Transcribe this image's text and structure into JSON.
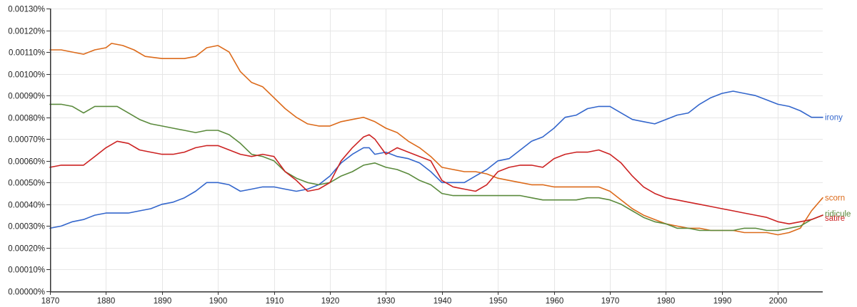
{
  "chart_data": {
    "type": "line",
    "title": "",
    "xlabel": "",
    "ylabel": "",
    "xlim": [
      1870,
      2008
    ],
    "ylim": [
      0,
      0.0013
    ],
    "grid": true,
    "x_ticks": [
      1870,
      1880,
      1890,
      1900,
      1910,
      1920,
      1930,
      1940,
      1950,
      1960,
      1970,
      1980,
      1990,
      2000
    ],
    "x_tick_labels": [
      "1870",
      "1880",
      "1890",
      "1900",
      "1910",
      "1920",
      "1930",
      "1940",
      "1950",
      "1960",
      "1970",
      "1980",
      "1990",
      "2000"
    ],
    "y_ticks": [
      0,
      0.0001,
      0.0002,
      0.0003,
      0.0004,
      0.0005,
      0.0006,
      0.0007,
      0.0008,
      0.0009,
      0.001,
      0.0011,
      0.0012,
      0.0013
    ],
    "y_tick_labels": [
      "0.00000%",
      "0.00010%",
      "0.00020%",
      "0.00030%",
      "0.00040%",
      "0.00050%",
      "0.00060%",
      "0.00070%",
      "0.00080%",
      "0.00090%",
      "0.00100%",
      "0.00110%",
      "0.00120%",
      "0.00130%"
    ],
    "legend": "inline-right",
    "series": [
      {
        "name": "irony",
        "color": "#3366cc",
        "points": [
          [
            1870,
            0.00029
          ],
          [
            1872,
            0.0003
          ],
          [
            1874,
            0.00032
          ],
          [
            1876,
            0.00033
          ],
          [
            1878,
            0.00035
          ],
          [
            1880,
            0.00036
          ],
          [
            1882,
            0.00036
          ],
          [
            1884,
            0.00036
          ],
          [
            1886,
            0.00037
          ],
          [
            1888,
            0.00038
          ],
          [
            1890,
            0.0004
          ],
          [
            1892,
            0.00041
          ],
          [
            1894,
            0.00043
          ],
          [
            1896,
            0.00046
          ],
          [
            1898,
            0.0005
          ],
          [
            1900,
            0.0005
          ],
          [
            1902,
            0.00049
          ],
          [
            1904,
            0.00046
          ],
          [
            1906,
            0.00047
          ],
          [
            1908,
            0.00048
          ],
          [
            1910,
            0.00048
          ],
          [
            1912,
            0.00047
          ],
          [
            1914,
            0.00046
          ],
          [
            1916,
            0.00047
          ],
          [
            1918,
            0.00049
          ],
          [
            1920,
            0.00053
          ],
          [
            1922,
            0.00059
          ],
          [
            1924,
            0.00063
          ],
          [
            1926,
            0.00066
          ],
          [
            1927,
            0.00066
          ],
          [
            1928,
            0.00063
          ],
          [
            1930,
            0.00064
          ],
          [
            1932,
            0.00062
          ],
          [
            1934,
            0.00061
          ],
          [
            1936,
            0.00059
          ],
          [
            1938,
            0.00055
          ],
          [
            1940,
            0.0005
          ],
          [
            1942,
            0.0005
          ],
          [
            1944,
            0.0005
          ],
          [
            1946,
            0.00053
          ],
          [
            1948,
            0.00056
          ],
          [
            1950,
            0.0006
          ],
          [
            1952,
            0.00061
          ],
          [
            1954,
            0.00065
          ],
          [
            1956,
            0.00069
          ],
          [
            1958,
            0.00071
          ],
          [
            1960,
            0.00075
          ],
          [
            1962,
            0.0008
          ],
          [
            1964,
            0.00081
          ],
          [
            1966,
            0.00084
          ],
          [
            1968,
            0.00085
          ],
          [
            1970,
            0.00085
          ],
          [
            1972,
            0.00082
          ],
          [
            1974,
            0.00079
          ],
          [
            1976,
            0.00078
          ],
          [
            1978,
            0.00077
          ],
          [
            1980,
            0.00079
          ],
          [
            1982,
            0.00081
          ],
          [
            1984,
            0.00082
          ],
          [
            1986,
            0.00086
          ],
          [
            1988,
            0.00089
          ],
          [
            1990,
            0.00091
          ],
          [
            1992,
            0.00092
          ],
          [
            1994,
            0.00091
          ],
          [
            1996,
            0.0009
          ],
          [
            1998,
            0.00088
          ],
          [
            2000,
            0.00086
          ],
          [
            2002,
            0.00085
          ],
          [
            2004,
            0.00083
          ],
          [
            2006,
            0.0008
          ],
          [
            2008,
            0.0008
          ]
        ]
      },
      {
        "name": "scorn",
        "color": "#dc6a1a",
        "points": [
          [
            1870,
            0.00111
          ],
          [
            1872,
            0.00111
          ],
          [
            1874,
            0.0011
          ],
          [
            1876,
            0.00109
          ],
          [
            1878,
            0.00111
          ],
          [
            1880,
            0.00112
          ],
          [
            1881,
            0.00114
          ],
          [
            1883,
            0.00113
          ],
          [
            1885,
            0.00111
          ],
          [
            1887,
            0.00108
          ],
          [
            1890,
            0.00107
          ],
          [
            1892,
            0.00107
          ],
          [
            1894,
            0.00107
          ],
          [
            1896,
            0.00108
          ],
          [
            1898,
            0.00112
          ],
          [
            1900,
            0.00113
          ],
          [
            1902,
            0.0011
          ],
          [
            1904,
            0.00101
          ],
          [
            1906,
            0.00096
          ],
          [
            1908,
            0.00094
          ],
          [
            1910,
            0.00089
          ],
          [
            1912,
            0.00084
          ],
          [
            1914,
            0.0008
          ],
          [
            1916,
            0.00077
          ],
          [
            1918,
            0.00076
          ],
          [
            1920,
            0.00076
          ],
          [
            1922,
            0.00078
          ],
          [
            1924,
            0.00079
          ],
          [
            1926,
            0.0008
          ],
          [
            1928,
            0.00078
          ],
          [
            1930,
            0.00075
          ],
          [
            1932,
            0.00073
          ],
          [
            1934,
            0.00069
          ],
          [
            1936,
            0.00066
          ],
          [
            1938,
            0.00062
          ],
          [
            1940,
            0.00057
          ],
          [
            1942,
            0.00056
          ],
          [
            1944,
            0.00055
          ],
          [
            1946,
            0.00055
          ],
          [
            1948,
            0.00054
          ],
          [
            1950,
            0.00052
          ],
          [
            1952,
            0.00051
          ],
          [
            1954,
            0.0005
          ],
          [
            1956,
            0.00049
          ],
          [
            1958,
            0.00049
          ],
          [
            1960,
            0.00048
          ],
          [
            1962,
            0.00048
          ],
          [
            1964,
            0.00048
          ],
          [
            1966,
            0.00048
          ],
          [
            1968,
            0.00048
          ],
          [
            1970,
            0.00046
          ],
          [
            1972,
            0.00042
          ],
          [
            1974,
            0.00038
          ],
          [
            1976,
            0.00035
          ],
          [
            1978,
            0.00033
          ],
          [
            1980,
            0.00031
          ],
          [
            1982,
            0.0003
          ],
          [
            1984,
            0.00029
          ],
          [
            1986,
            0.00029
          ],
          [
            1988,
            0.00028
          ],
          [
            1990,
            0.00028
          ],
          [
            1992,
            0.00028
          ],
          [
            1994,
            0.00027
          ],
          [
            1996,
            0.00027
          ],
          [
            1998,
            0.00027
          ],
          [
            2000,
            0.00026
          ],
          [
            2002,
            0.00027
          ],
          [
            2004,
            0.00029
          ],
          [
            2006,
            0.00037
          ],
          [
            2008,
            0.00043
          ]
        ]
      },
      {
        "name": "ridicule",
        "color": "#5a8a3c",
        "points": [
          [
            1870,
            0.00086
          ],
          [
            1872,
            0.00086
          ],
          [
            1874,
            0.00085
          ],
          [
            1876,
            0.00082
          ],
          [
            1878,
            0.00085
          ],
          [
            1880,
            0.00085
          ],
          [
            1882,
            0.00085
          ],
          [
            1884,
            0.00082
          ],
          [
            1886,
            0.00079
          ],
          [
            1888,
            0.00077
          ],
          [
            1890,
            0.00076
          ],
          [
            1892,
            0.00075
          ],
          [
            1894,
            0.00074
          ],
          [
            1896,
            0.00073
          ],
          [
            1898,
            0.00074
          ],
          [
            1900,
            0.00074
          ],
          [
            1902,
            0.00072
          ],
          [
            1904,
            0.00068
          ],
          [
            1906,
            0.00063
          ],
          [
            1908,
            0.00062
          ],
          [
            1910,
            0.0006
          ],
          [
            1912,
            0.00055
          ],
          [
            1914,
            0.00052
          ],
          [
            1916,
            0.0005
          ],
          [
            1918,
            0.00049
          ],
          [
            1920,
            0.0005
          ],
          [
            1922,
            0.00053
          ],
          [
            1924,
            0.00055
          ],
          [
            1926,
            0.00058
          ],
          [
            1928,
            0.00059
          ],
          [
            1930,
            0.00057
          ],
          [
            1932,
            0.00056
          ],
          [
            1934,
            0.00054
          ],
          [
            1936,
            0.00051
          ],
          [
            1938,
            0.00049
          ],
          [
            1940,
            0.00045
          ],
          [
            1942,
            0.00044
          ],
          [
            1944,
            0.00044
          ],
          [
            1946,
            0.00044
          ],
          [
            1948,
            0.00044
          ],
          [
            1950,
            0.00044
          ],
          [
            1952,
            0.00044
          ],
          [
            1954,
            0.00044
          ],
          [
            1956,
            0.00043
          ],
          [
            1958,
            0.00042
          ],
          [
            1960,
            0.00042
          ],
          [
            1962,
            0.00042
          ],
          [
            1964,
            0.00042
          ],
          [
            1966,
            0.00043
          ],
          [
            1968,
            0.00043
          ],
          [
            1970,
            0.00042
          ],
          [
            1972,
            0.0004
          ],
          [
            1974,
            0.00037
          ],
          [
            1976,
            0.00034
          ],
          [
            1978,
            0.00032
          ],
          [
            1980,
            0.00031
          ],
          [
            1982,
            0.00029
          ],
          [
            1984,
            0.00029
          ],
          [
            1986,
            0.00028
          ],
          [
            1988,
            0.00028
          ],
          [
            1990,
            0.00028
          ],
          [
            1992,
            0.00028
          ],
          [
            1994,
            0.00029
          ],
          [
            1996,
            0.00029
          ],
          [
            1998,
            0.00028
          ],
          [
            2000,
            0.00028
          ],
          [
            2002,
            0.00029
          ],
          [
            2004,
            0.0003
          ],
          [
            2006,
            0.00033
          ],
          [
            2008,
            0.00035
          ]
        ]
      },
      {
        "name": "satire",
        "color": "#cc2222",
        "points": [
          [
            1870,
            0.00057
          ],
          [
            1872,
            0.00058
          ],
          [
            1874,
            0.00058
          ],
          [
            1876,
            0.00058
          ],
          [
            1878,
            0.00062
          ],
          [
            1880,
            0.00066
          ],
          [
            1882,
            0.00069
          ],
          [
            1884,
            0.00068
          ],
          [
            1886,
            0.00065
          ],
          [
            1888,
            0.00064
          ],
          [
            1890,
            0.00063
          ],
          [
            1892,
            0.00063
          ],
          [
            1894,
            0.00064
          ],
          [
            1896,
            0.00066
          ],
          [
            1898,
            0.00067
          ],
          [
            1900,
            0.00067
          ],
          [
            1902,
            0.00065
          ],
          [
            1904,
            0.00063
          ],
          [
            1906,
            0.00062
          ],
          [
            1908,
            0.00063
          ],
          [
            1910,
            0.00062
          ],
          [
            1912,
            0.00055
          ],
          [
            1914,
            0.00051
          ],
          [
            1916,
            0.00046
          ],
          [
            1918,
            0.00047
          ],
          [
            1920,
            0.0005
          ],
          [
            1922,
            0.0006
          ],
          [
            1924,
            0.00066
          ],
          [
            1926,
            0.00071
          ],
          [
            1927,
            0.00072
          ],
          [
            1928,
            0.0007
          ],
          [
            1930,
            0.00063
          ],
          [
            1932,
            0.00066
          ],
          [
            1934,
            0.00064
          ],
          [
            1936,
            0.00062
          ],
          [
            1938,
            0.0006
          ],
          [
            1940,
            0.00051
          ],
          [
            1942,
            0.00048
          ],
          [
            1944,
            0.00047
          ],
          [
            1946,
            0.00046
          ],
          [
            1948,
            0.00049
          ],
          [
            1950,
            0.00055
          ],
          [
            1952,
            0.00057
          ],
          [
            1954,
            0.00058
          ],
          [
            1956,
            0.00058
          ],
          [
            1958,
            0.00057
          ],
          [
            1960,
            0.00061
          ],
          [
            1962,
            0.00063
          ],
          [
            1964,
            0.00064
          ],
          [
            1966,
            0.00064
          ],
          [
            1968,
            0.00065
          ],
          [
            1970,
            0.00063
          ],
          [
            1972,
            0.00059
          ],
          [
            1974,
            0.00053
          ],
          [
            1976,
            0.00048
          ],
          [
            1978,
            0.00045
          ],
          [
            1980,
            0.00043
          ],
          [
            1982,
            0.00042
          ],
          [
            1984,
            0.00041
          ],
          [
            1986,
            0.0004
          ],
          [
            1988,
            0.00039
          ],
          [
            1990,
            0.00038
          ],
          [
            1992,
            0.00037
          ],
          [
            1994,
            0.00036
          ],
          [
            1996,
            0.00035
          ],
          [
            1998,
            0.00034
          ],
          [
            2000,
            0.00032
          ],
          [
            2002,
            0.00031
          ],
          [
            2004,
            0.00032
          ],
          [
            2006,
            0.00033
          ],
          [
            2008,
            0.00035
          ]
        ]
      }
    ]
  }
}
